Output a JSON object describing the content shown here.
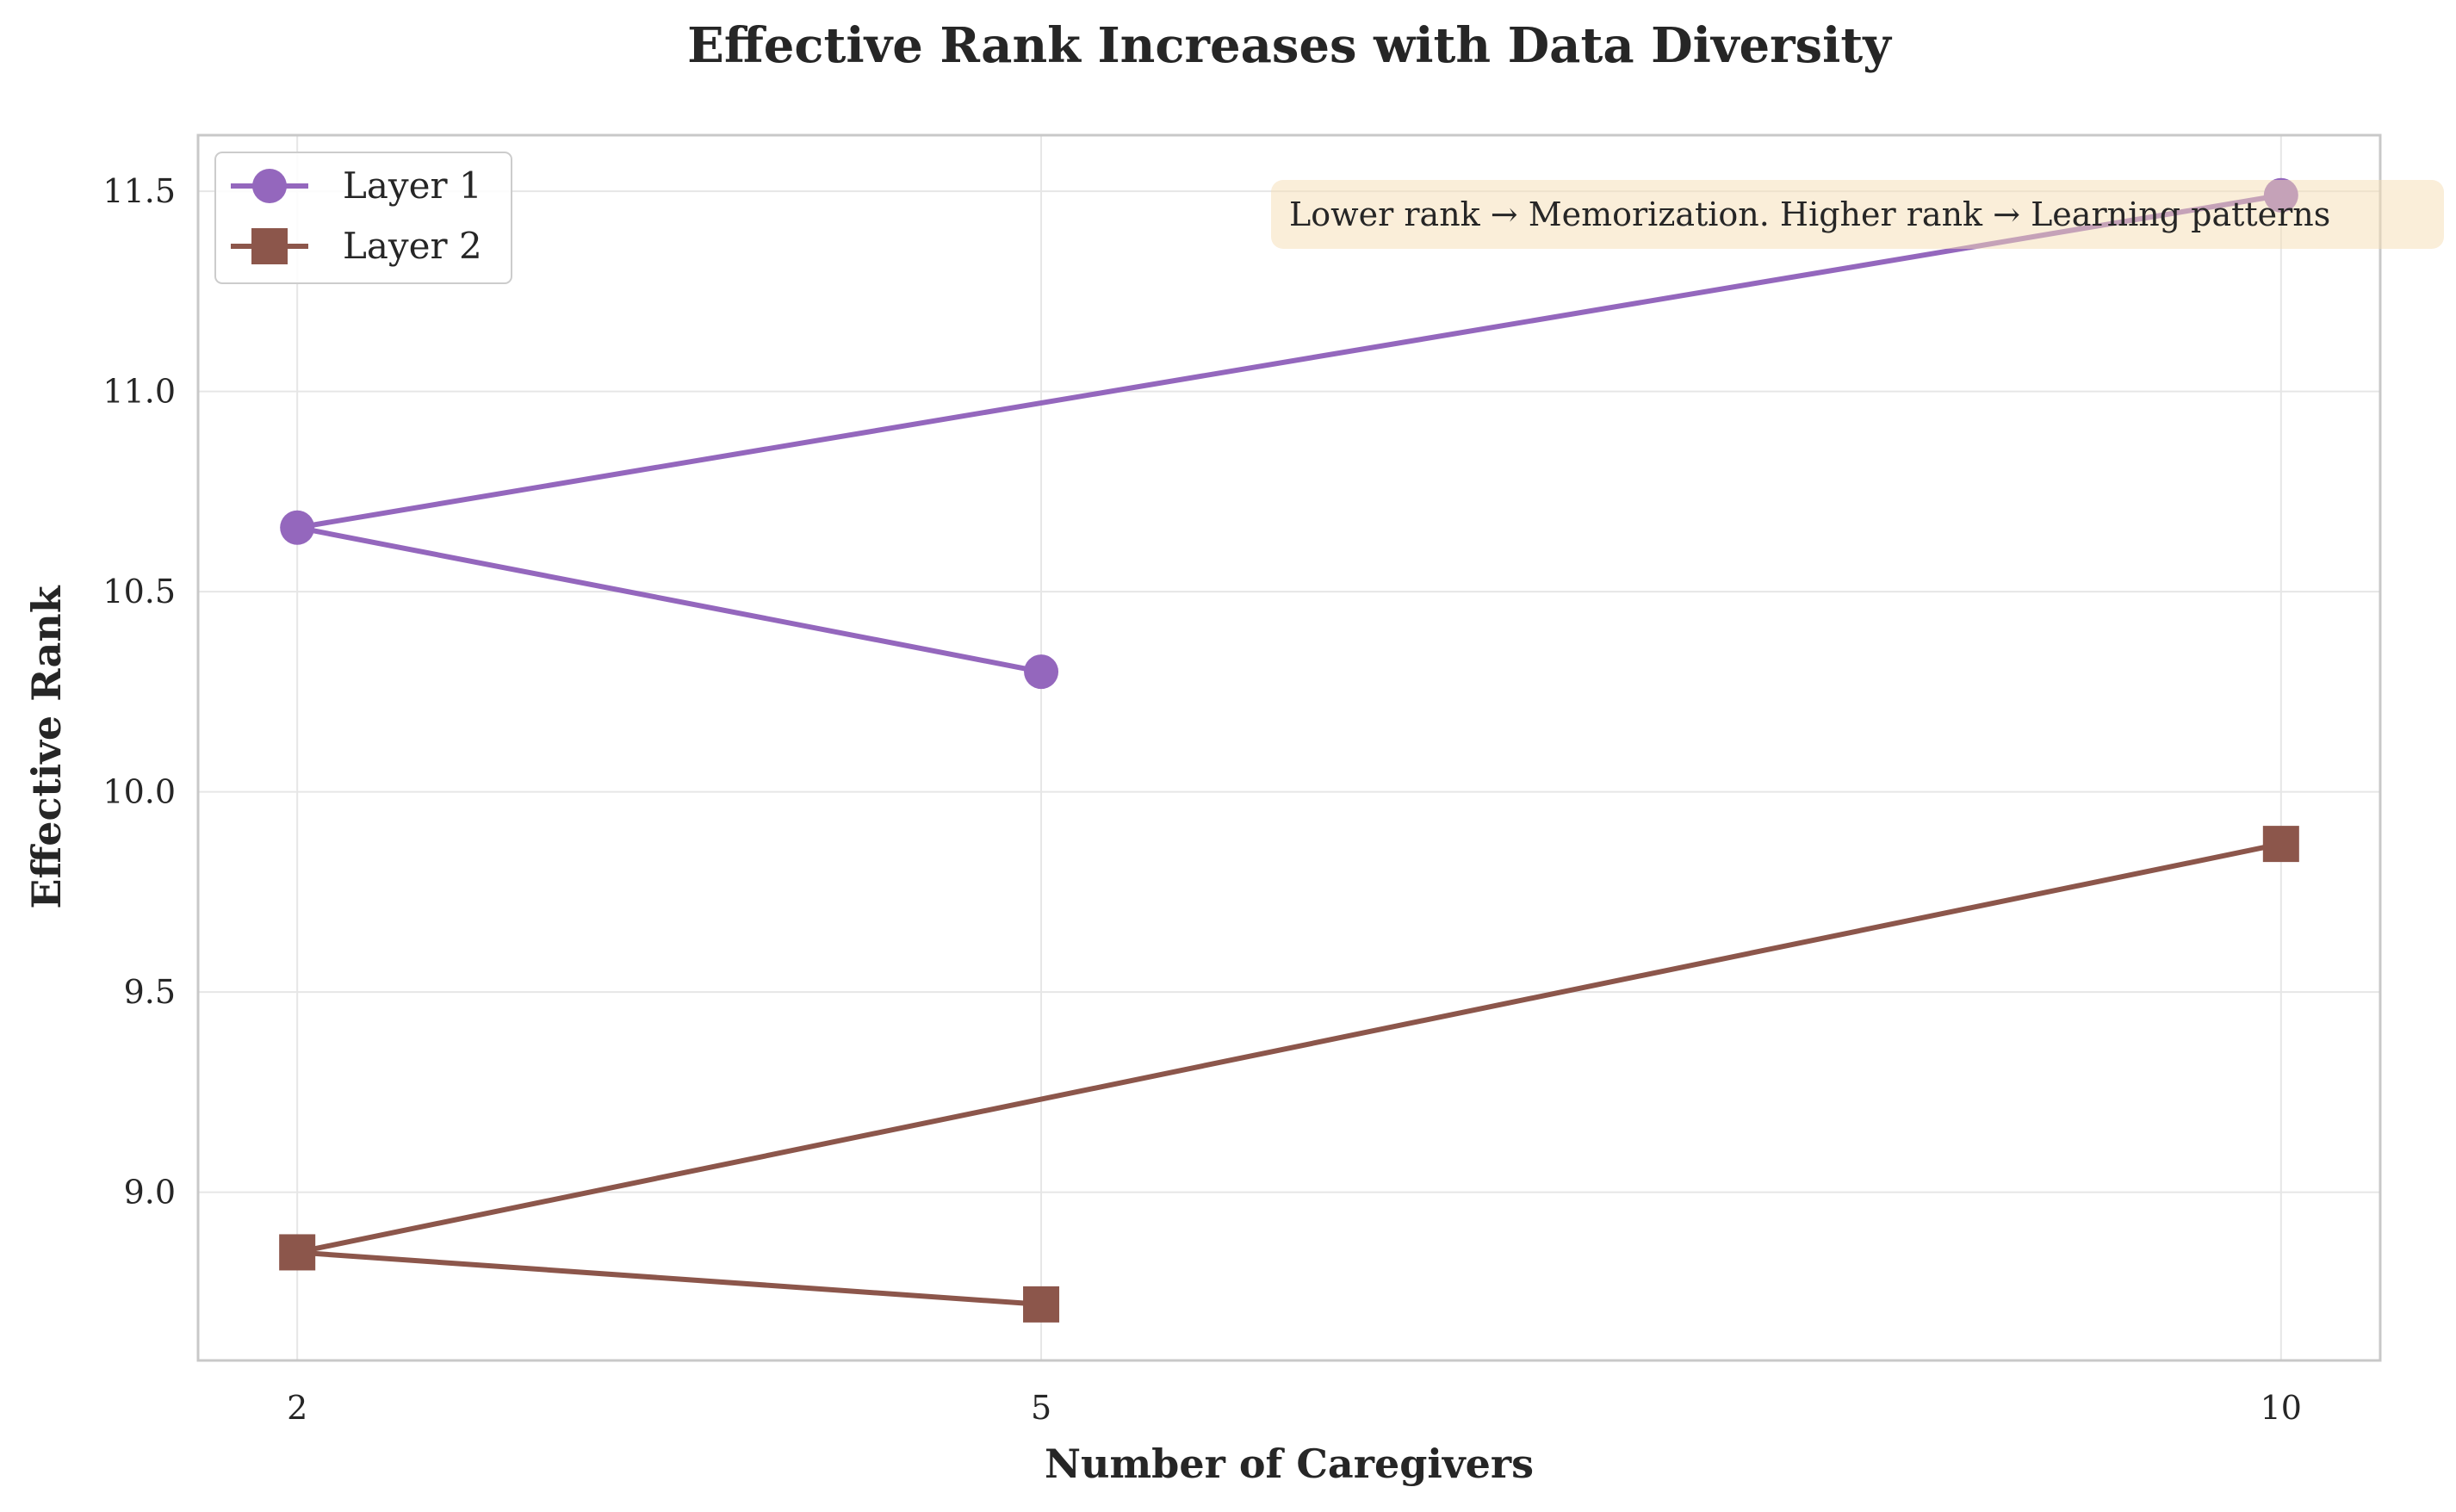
{
  "chart_data": {
    "type": "line",
    "title": "Effective Rank Increases with Data Diversity",
    "xlabel": "Number of Caregivers",
    "ylabel": "Effective Rank",
    "x_ticks": [
      2,
      5,
      10
    ],
    "y_ticks": [
      "9.0",
      "9.5",
      "10.0",
      "10.5",
      "11.0",
      "11.5"
    ],
    "xlim": [
      1.6,
      10.4
    ],
    "ylim": [
      8.58,
      11.64
    ],
    "grid": true,
    "legend_position": "top-left",
    "series": [
      {
        "name": "Layer 1",
        "color": "#9467bd",
        "marker": "circle",
        "points": [
          [
            5,
            10.3
          ],
          [
            2,
            10.66
          ],
          [
            10,
            11.49
          ]
        ]
      },
      {
        "name": "Layer 2",
        "color": "#8c564b",
        "marker": "square",
        "points": [
          [
            5,
            8.72
          ],
          [
            2,
            8.85
          ],
          [
            10,
            9.87
          ]
        ]
      }
    ],
    "annotation": {
      "text": "Lower rank → Memorization. Higher rank → Learning patterns",
      "position": "top-right",
      "background": "#f5deb3"
    }
  }
}
